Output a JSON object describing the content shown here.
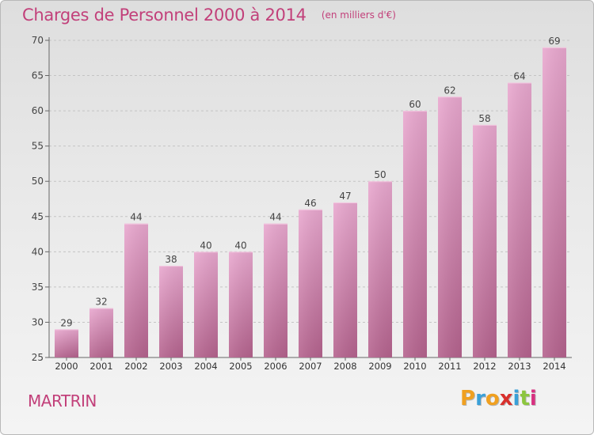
{
  "header": {
    "title": "Charges de Personnel 2000 à 2014",
    "subtitle": "(en milliers d'€)"
  },
  "footer": {
    "commune": "MARTRIN",
    "logo_text": "Proxiti"
  },
  "colors": {
    "accent": "#c2407a",
    "bar_top": "#e9a8cf",
    "bar_bottom": "#b5638e",
    "logo_letters": [
      "#f0a020",
      "#3aa0d8",
      "#f0a020",
      "#d8302c",
      "#3aa0d8",
      "#8cc63e",
      "#d83080"
    ]
  },
  "chart_data": {
    "type": "bar",
    "categories": [
      "2000",
      "2001",
      "2002",
      "2003",
      "2004",
      "2005",
      "2006",
      "2007",
      "2008",
      "2009",
      "2010",
      "2011",
      "2012",
      "2013",
      "2014"
    ],
    "values": [
      29,
      32,
      44,
      38,
      40,
      40,
      44,
      46,
      47,
      50,
      60,
      62,
      58,
      64,
      69
    ],
    "ylim": [
      25,
      70
    ],
    "yticks": [
      25,
      30,
      35,
      40,
      45,
      50,
      55,
      60,
      65,
      70
    ],
    "grid": "horizontal dashed",
    "data_labels": true
  }
}
